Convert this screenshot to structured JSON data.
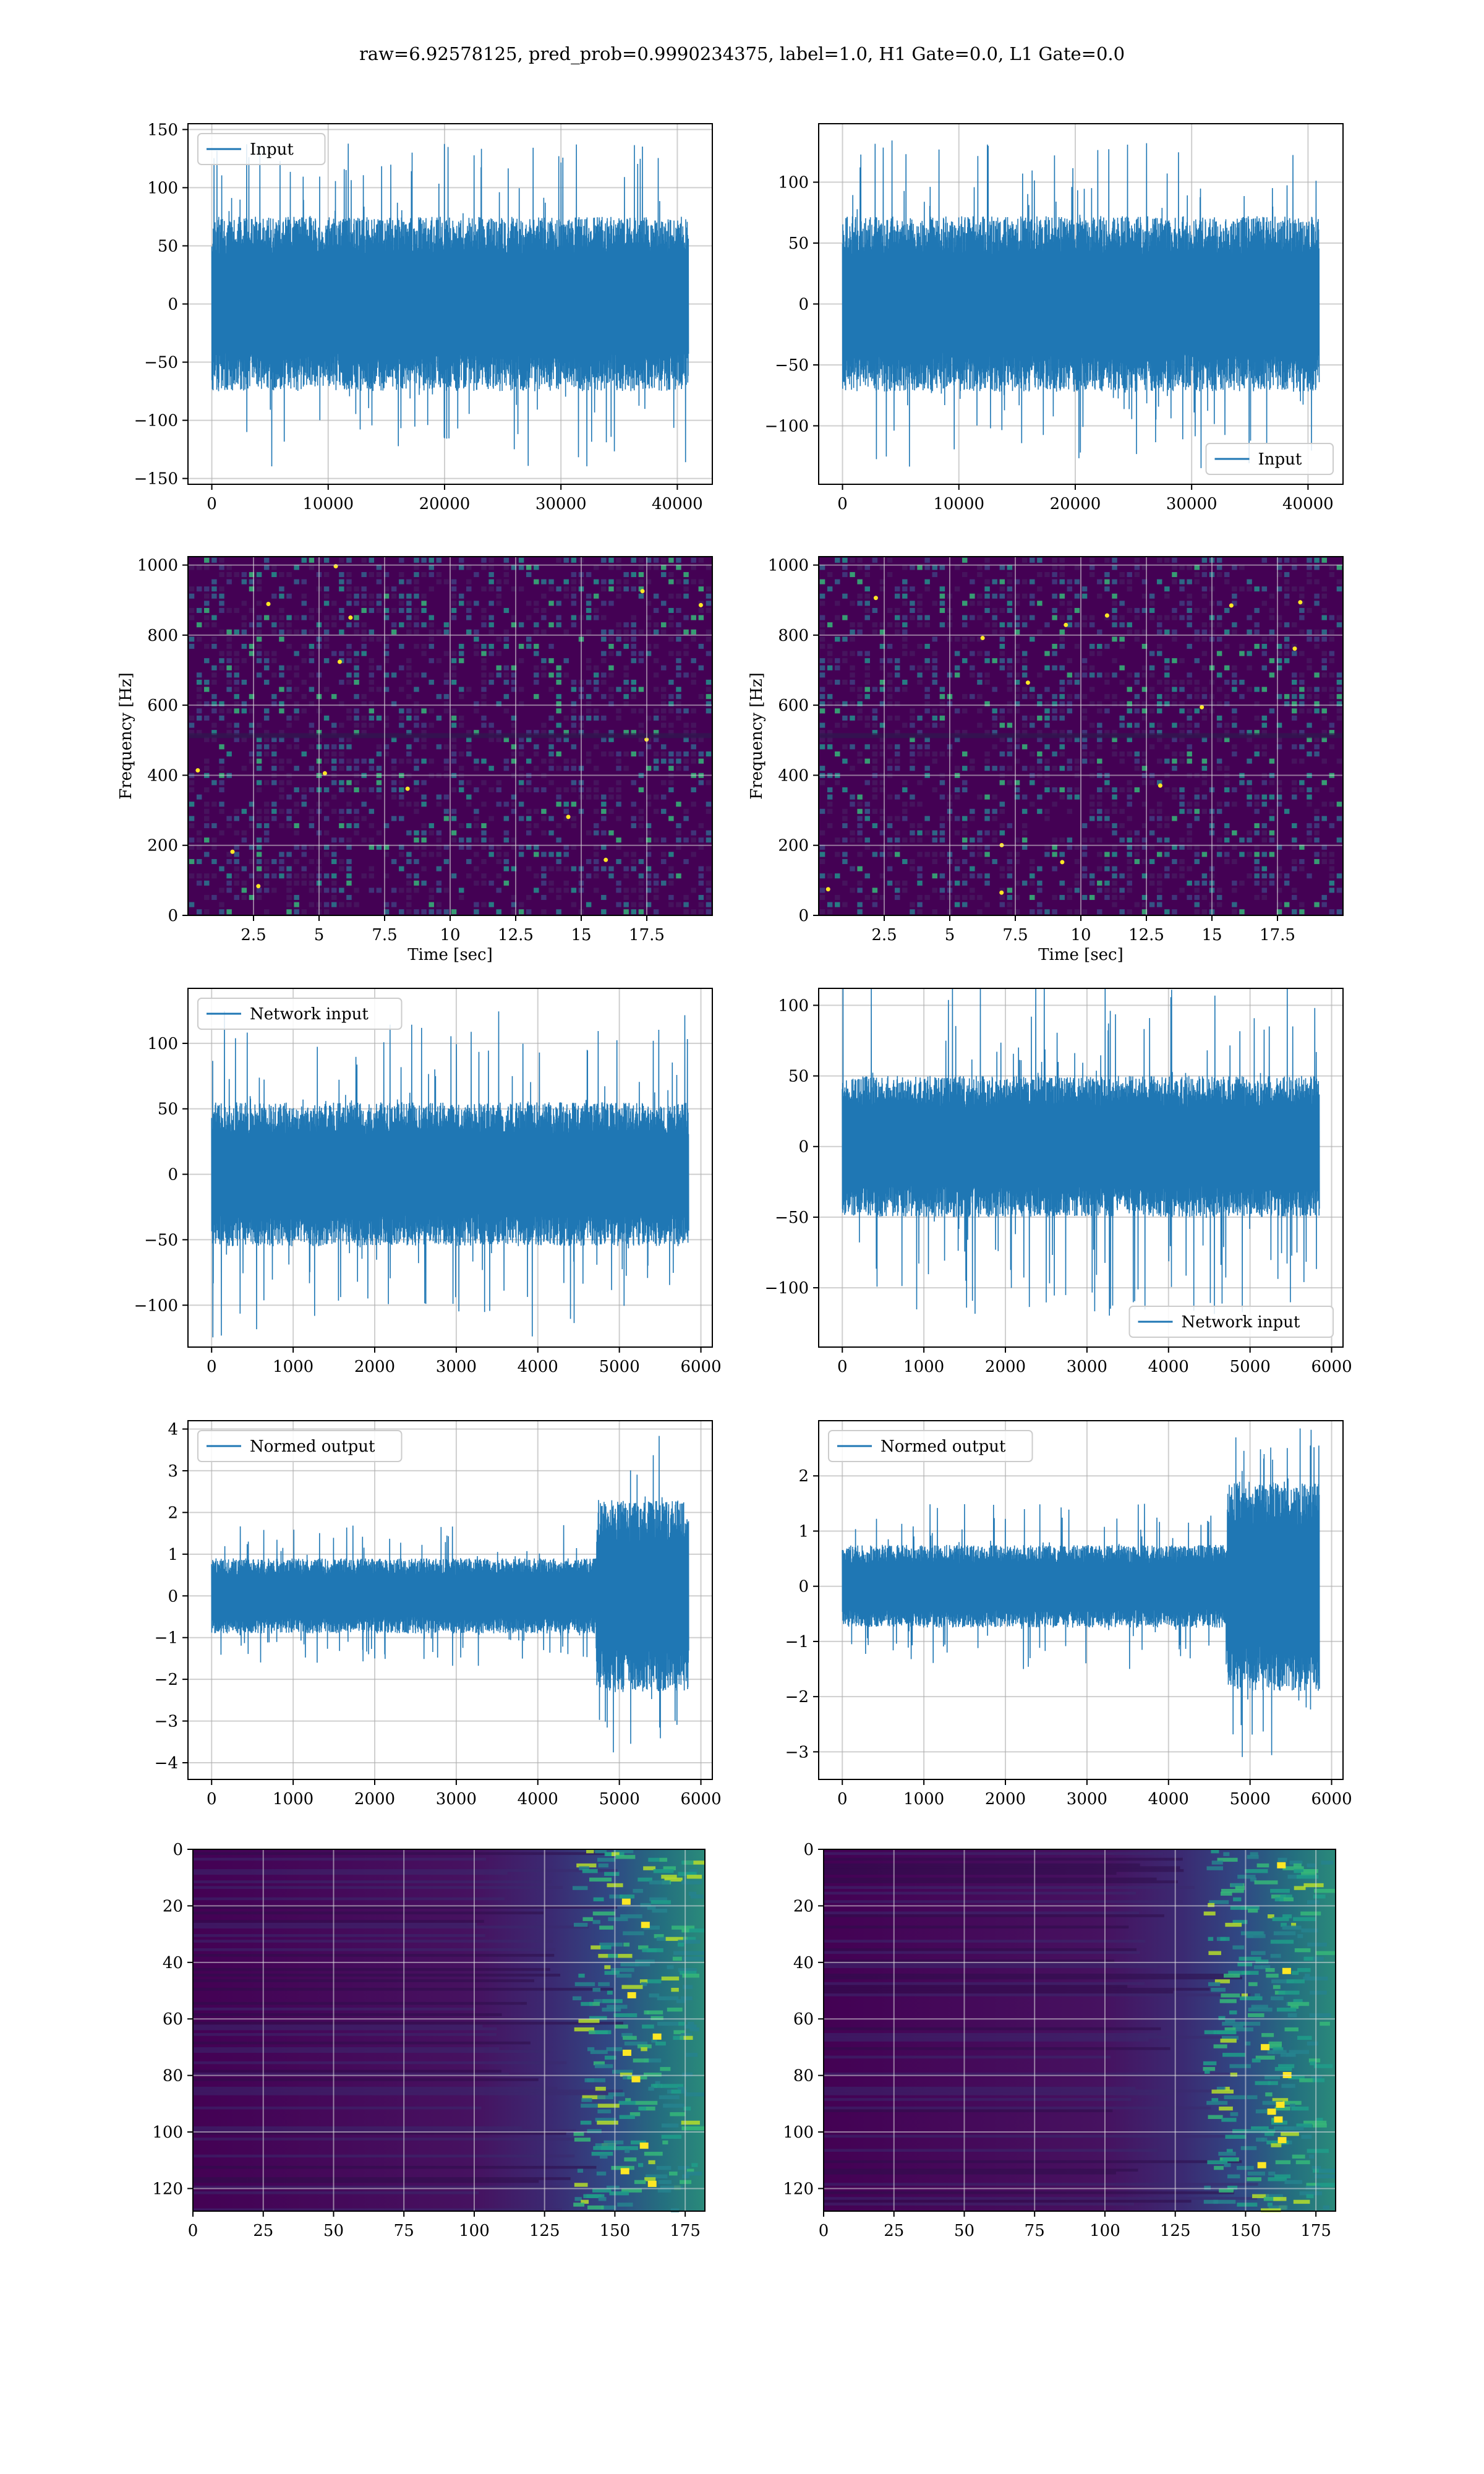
{
  "title": "raw=6.92578125, pred_prob=0.9990234375, label=1.0, H1 Gate=0.0, L1 Gate=0.0",
  "colors": {
    "line": "#1f77b4",
    "grid": "#b0b0b0",
    "viridis_low": "#440154",
    "viridis_mid": "#21918c",
    "viridis_high": "#fde725"
  },
  "chart_data": [
    {
      "id": "input-h1",
      "type": "line",
      "legend": "Input",
      "legend_loc": "upper left",
      "xlim": [
        -2048,
        43008
      ],
      "ylim": [
        -155,
        155
      ],
      "xticks": [
        0,
        10000,
        20000,
        30000,
        40000
      ],
      "yticks": [
        -150,
        -100,
        -50,
        0,
        50,
        100,
        150
      ],
      "x_range": [
        0,
        40960
      ],
      "band": 75,
      "peak": 140,
      "grid": true
    },
    {
      "id": "input-l1",
      "type": "line",
      "legend": "Input",
      "legend_loc": "lower right",
      "xlim": [
        -2048,
        43008
      ],
      "ylim": [
        -148,
        148
      ],
      "xticks": [
        0,
        10000,
        20000,
        30000,
        40000
      ],
      "yticks": [
        -100,
        -50,
        0,
        50,
        100
      ],
      "x_range": [
        0,
        40960
      ],
      "band": 72,
      "peak": 135,
      "grid": true
    },
    {
      "id": "spec-h1",
      "type": "heatmap",
      "xlabel": "Time [sec]",
      "ylabel": "Frequency [Hz]",
      "xlim": [
        0,
        20
      ],
      "ylim": [
        0,
        1024
      ],
      "xticks": [
        2.5,
        5.0,
        7.5,
        10.0,
        12.5,
        15.0,
        17.5
      ],
      "yticks": [
        0,
        200,
        400,
        600,
        800,
        1000
      ],
      "grid": true
    },
    {
      "id": "spec-l1",
      "type": "heatmap",
      "xlabel": "Time [sec]",
      "ylabel": "Frequency [Hz]",
      "xlim": [
        0,
        20
      ],
      "ylim": [
        0,
        1024
      ],
      "xticks": [
        2.5,
        5.0,
        7.5,
        10.0,
        12.5,
        15.0,
        17.5
      ],
      "yticks": [
        0,
        200,
        400,
        600,
        800,
        1000
      ],
      "grid": true
    },
    {
      "id": "net-h1",
      "type": "line",
      "legend": "Network input",
      "legend_loc": "upper left",
      "xlim": [
        -290,
        6140
      ],
      "ylim": [
        -132,
        142
      ],
      "xticks": [
        0,
        1000,
        2000,
        3000,
        4000,
        5000,
        6000
      ],
      "yticks": [
        -100,
        -50,
        0,
        50,
        100
      ],
      "x_range": [
        0,
        5850
      ],
      "band": 55,
      "peak": 125,
      "grid": true
    },
    {
      "id": "net-l1",
      "type": "line",
      "legend": "Network input",
      "legend_loc": "lower right",
      "xlim": [
        -290,
        6140
      ],
      "ylim": [
        -142,
        112
      ],
      "xticks": [
        0,
        1000,
        2000,
        3000,
        4000,
        5000,
        6000
      ],
      "yticks": [
        -100,
        -50,
        0,
        50,
        100
      ],
      "x_range": [
        0,
        5850
      ],
      "band": 50,
      "peak": 120,
      "grid": true
    },
    {
      "id": "out-h1",
      "type": "line",
      "legend": "Normed output",
      "legend_loc": "upper left",
      "xlim": [
        -290,
        6140
      ],
      "ylim": [
        -4.4,
        4.2
      ],
      "xticks": [
        0,
        1000,
        2000,
        3000,
        4000,
        5000,
        6000
      ],
      "yticks": [
        -4,
        -3,
        -2,
        -1,
        0,
        1,
        2,
        3,
        4
      ],
      "x_range": [
        0,
        5850
      ],
      "band": 0.9,
      "peak": 1.7,
      "burst_start": 4720,
      "burst_band": 2.3,
      "burst_peak": 3.9,
      "grid": true
    },
    {
      "id": "out-l1",
      "type": "line",
      "legend": "Normed output",
      "legend_loc": "upper left",
      "xlim": [
        -290,
        6140
      ],
      "ylim": [
        -3.5,
        3.0
      ],
      "xticks": [
        0,
        1000,
        2000,
        3000,
        4000,
        5000,
        6000
      ],
      "yticks": [
        -3,
        -2,
        -1,
        0,
        1,
        2
      ],
      "x_range": [
        0,
        5850
      ],
      "band": 0.75,
      "peak": 1.5,
      "burst_start": 4720,
      "burst_band": 1.9,
      "burst_peak": 3.1,
      "grid": true
    },
    {
      "id": "feat-h1",
      "type": "heatmap",
      "xlim": [
        0,
        182
      ],
      "ylim": [
        128,
        0
      ],
      "xticks": [
        0,
        25,
        50,
        75,
        100,
        125,
        150,
        175
      ],
      "yticks": [
        0,
        20,
        40,
        60,
        80,
        100,
        120
      ],
      "grid": true
    },
    {
      "id": "feat-l1",
      "type": "heatmap",
      "xlim": [
        0,
        182
      ],
      "ylim": [
        128,
        0
      ],
      "xticks": [
        0,
        25,
        50,
        75,
        100,
        125,
        150,
        175
      ],
      "yticks": [
        0,
        20,
        40,
        60,
        80,
        100,
        120
      ],
      "grid": true
    }
  ]
}
